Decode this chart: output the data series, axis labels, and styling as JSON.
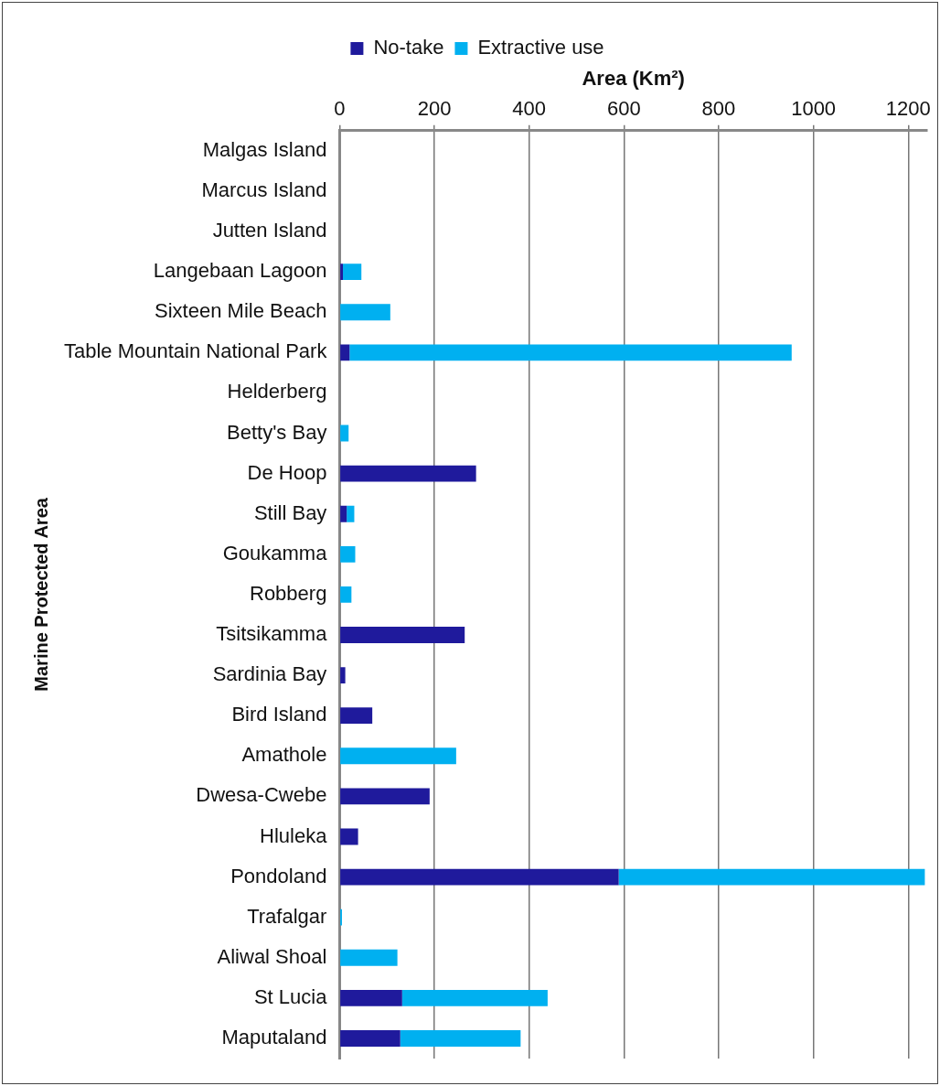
{
  "chart_data": {
    "type": "bar",
    "orientation": "horizontal",
    "stacked": true,
    "xlabel": "Area (Km²)",
    "ylabel": "Marine Protected Area",
    "categories": [
      "Malgas Island",
      "Marcus Island",
      "Jutten Island",
      "Langebaan Lagoon",
      "Sixteen Mile Beach",
      "Table Mountain National Park",
      "Helderberg",
      "Betty's Bay",
      "De Hoop",
      "Still Bay",
      "Goukamma",
      "Robberg",
      "Tsitsikamma",
      "Sardinia Bay",
      "Bird Island",
      "Amathole",
      "Dwesa-Cwebe",
      "Hluleka",
      "Pondoland",
      "Trafalgar",
      "Aliwal Shoal",
      "St Lucia",
      "Maputaland"
    ],
    "series": [
      {
        "name": "No-take",
        "color": "#1f1a9c",
        "values": [
          0,
          0,
          0,
          7,
          0,
          21,
          0,
          0,
          288,
          15,
          0,
          0,
          264,
          12,
          69,
          0,
          190,
          39,
          589,
          0,
          0,
          132,
          128
        ]
      },
      {
        "name": "Extractive use",
        "color": "#00b0f0",
        "values": [
          0,
          0,
          0,
          39,
          107,
          933,
          0,
          19,
          0,
          16,
          33,
          25,
          0,
          0,
          0,
          246,
          0,
          0,
          646,
          5,
          122,
          307,
          254
        ]
      }
    ],
    "xlim": [
      0,
      1240
    ],
    "xticks": [
      0,
      200,
      400,
      600,
      800,
      1000,
      1200
    ],
    "grid": "x",
    "legend": "top"
  }
}
